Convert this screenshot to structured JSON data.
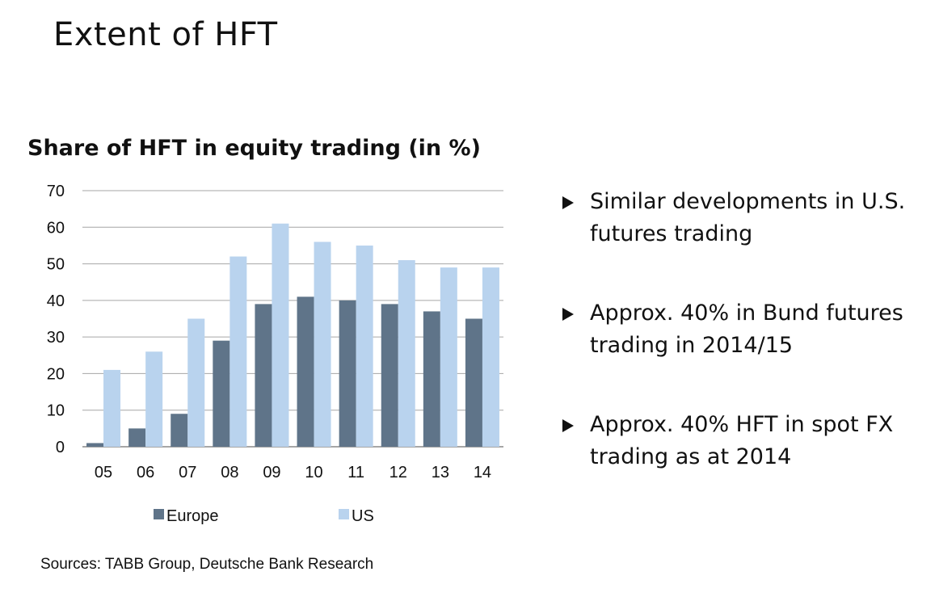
{
  "slide": {
    "title": "Extent of HFT",
    "sources": "Sources: TABB Group, Deutsche Bank Research"
  },
  "bullets": [
    "Similar developments in U.S. futures trading",
    "Approx. 40% in Bund futures trading in 2014/15",
    "Approx. 40% HFT in spot FX trading as at 2014"
  ],
  "colors": {
    "europe": "#5f7489",
    "us": "#b9d3ee",
    "grid": "#a6a6a6",
    "axis": "#888888"
  },
  "chart_data": {
    "type": "bar",
    "title": "Share of HFT in equity trading (in %)",
    "xlabel": "",
    "ylabel": "",
    "categories": [
      "05",
      "06",
      "07",
      "08",
      "09",
      "10",
      "11",
      "12",
      "13",
      "14"
    ],
    "series": [
      {
        "name": "Europe",
        "values": [
          1,
          5,
          9,
          29,
          39,
          41,
          40,
          39,
          37,
          35
        ]
      },
      {
        "name": "US",
        "values": [
          21,
          26,
          35,
          52,
          61,
          56,
          55,
          51,
          49,
          49
        ]
      }
    ],
    "ylim": [
      0,
      70
    ],
    "yticks": [
      0,
      10,
      20,
      30,
      40,
      50,
      60,
      70
    ],
    "grid": true,
    "legend_position": "bottom"
  }
}
